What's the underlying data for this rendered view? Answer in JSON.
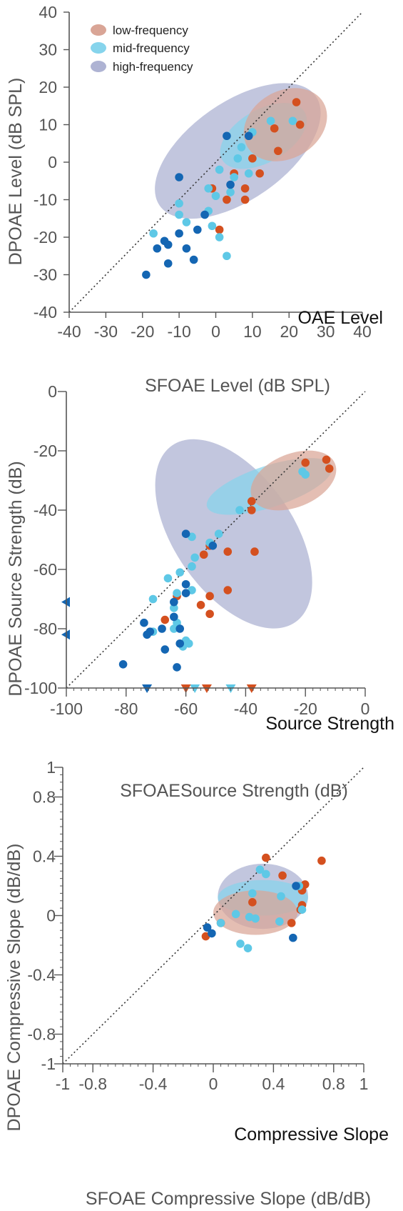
{
  "colors": {
    "low": "#d4501f",
    "mid": "#5ec8e6",
    "high": "#1466b3",
    "low_ellipse": "#d9a596",
    "mid_ellipse": "#86d4ec",
    "high_ellipse": "#aeb3d3"
  },
  "legend": [
    {
      "key": "low",
      "label": "low-frequency"
    },
    {
      "key": "mid",
      "label": "mid-frequency"
    },
    {
      "key": "high",
      "label": "high-frequency"
    }
  ],
  "chart_data": [
    {
      "type": "scatter",
      "title": "OAE Level",
      "xlabel": "SFOAE Level (dB SPL)",
      "ylabel": "DPOAE Level (dB SPL)",
      "xlim": [
        -40,
        40
      ],
      "ylim": [
        -40,
        40
      ],
      "xticks": [
        -40,
        -30,
        -20,
        -10,
        0,
        10,
        20,
        30,
        40
      ],
      "yticks": [
        -40,
        -30,
        -20,
        -10,
        0,
        10,
        20,
        30,
        40
      ],
      "xtick_labels": [
        "-40",
        "-30",
        "-20",
        "-10",
        "0",
        "10",
        "20",
        "30",
        "40"
      ],
      "ytick_labels": [
        "-40",
        "-30",
        "-20",
        "-10",
        "0",
        "10",
        "20",
        "30",
        "40"
      ],
      "identity_line": true,
      "ellipses": [
        {
          "group": "high",
          "cx": 6,
          "cy": 3,
          "rx": 26,
          "ry": 13,
          "angle": 35
        },
        {
          "group": "mid",
          "cx": 13,
          "cy": 7,
          "rx": 13,
          "ry": 7,
          "angle": 30
        },
        {
          "group": "low",
          "cx": 19,
          "cy": 10,
          "rx": 12,
          "ry": 9,
          "angle": 30
        }
      ],
      "series": [
        {
          "name": "low-frequency",
          "key": "low",
          "points": [
            [
              22,
              16
            ],
            [
              23,
              10
            ],
            [
              16,
              9
            ],
            [
              17,
              3
            ],
            [
              10,
              1
            ],
            [
              12,
              -3
            ],
            [
              5,
              -3
            ],
            [
              -1,
              -7
            ],
            [
              8,
              -7
            ],
            [
              3,
              -10
            ],
            [
              8,
              -10
            ],
            [
              1,
              -18
            ]
          ]
        },
        {
          "name": "mid-frequency",
          "key": "mid",
          "points": [
            [
              15,
              11
            ],
            [
              21,
              11
            ],
            [
              10,
              8
            ],
            [
              7,
              4
            ],
            [
              6,
              1
            ],
            [
              1,
              -2
            ],
            [
              9,
              -3
            ],
            [
              5,
              -4
            ],
            [
              -2,
              -7
            ],
            [
              4,
              -8
            ],
            [
              0,
              -9
            ],
            [
              -2,
              -13
            ],
            [
              -10,
              -11
            ],
            [
              -10,
              -14
            ],
            [
              -8,
              -16
            ],
            [
              -3,
              -14
            ],
            [
              -1,
              -17
            ],
            [
              1,
              -20
            ],
            [
              -17,
              -19
            ],
            [
              3,
              -25
            ]
          ]
        },
        {
          "name": "high-frequency",
          "key": "high",
          "points": [
            [
              3,
              7
            ],
            [
              9,
              7
            ],
            [
              -10,
              -4
            ],
            [
              4,
              -6
            ],
            [
              -3,
              -14
            ],
            [
              -10,
              -19
            ],
            [
              -5,
              -18
            ],
            [
              -14,
              -21
            ],
            [
              -13,
              -22
            ],
            [
              -16,
              -23
            ],
            [
              -8,
              -23
            ],
            [
              -6,
              -26
            ],
            [
              -13,
              -27
            ],
            [
              -19,
              -30
            ]
          ]
        }
      ]
    },
    {
      "type": "scatter",
      "title": "Source Strength",
      "xlabel": "SFOAESource Strength (dB)",
      "ylabel": "DPOAE Source Strength (dB)",
      "xlim": [
        -100,
        0
      ],
      "ylim": [
        -100,
        0
      ],
      "xticks": [
        -100,
        -80,
        -60,
        -40,
        -20,
        0
      ],
      "yticks": [
        -100,
        -80,
        -60,
        -40,
        -20,
        0
      ],
      "xtick_labels": [
        "-100",
        "-80",
        "-60",
        "-40",
        "-20",
        "0"
      ],
      "ytick_labels": [
        "-100",
        "-80",
        "-60",
        "-40",
        "-20",
        "0"
      ],
      "identity_line": true,
      "ellipses": [
        {
          "group": "high",
          "cx": -44,
          "cy": -48,
          "rx": 36,
          "ry": 20,
          "angle": -55
        },
        {
          "group": "mid",
          "cx": -32,
          "cy": -32,
          "rx": 22,
          "ry": 7,
          "angle": 18
        },
        {
          "group": "low",
          "cx": -24,
          "cy": -30,
          "rx": 15,
          "ry": 9,
          "angle": 22
        }
      ],
      "series": [
        {
          "name": "low-frequency",
          "key": "low",
          "points": [
            [
              -13,
              -23
            ],
            [
              -12,
              -26
            ],
            [
              -20,
              -24
            ],
            [
              -38,
              -37
            ],
            [
              -38,
              -40
            ],
            [
              -37,
              -54
            ],
            [
              -46,
              -54
            ],
            [
              -52,
              -52
            ],
            [
              -54,
              -55
            ],
            [
              -46,
              -67
            ],
            [
              -52,
              -69
            ],
            [
              -55,
              -72
            ],
            [
              -52,
              -75
            ],
            [
              -63,
              -69
            ],
            [
              -67,
              -77
            ]
          ]
        },
        {
          "name": "mid-frequency",
          "key": "mid",
          "points": [
            [
              -20,
              -28
            ],
            [
              -21,
              -27
            ],
            [
              -42,
              -40
            ],
            [
              -49,
              -48
            ],
            [
              -52,
              -51
            ],
            [
              -58,
              -49
            ],
            [
              -57,
              -56
            ],
            [
              -58,
              -59
            ],
            [
              -62,
              -61
            ],
            [
              -66,
              -63
            ],
            [
              -71,
              -70
            ],
            [
              -63,
              -68
            ],
            [
              -58,
              -67
            ],
            [
              -64,
              -73
            ],
            [
              -63,
              -78
            ],
            [
              -64,
              -80
            ],
            [
              -60,
              -84
            ],
            [
              -59,
              -85
            ],
            [
              -61,
              -86
            ],
            [
              -71,
              -81
            ]
          ]
        },
        {
          "name": "high-frequency",
          "key": "high",
          "points": [
            [
              -60,
              -48
            ],
            [
              -51,
              -52
            ],
            [
              -60,
              -65
            ],
            [
              -60,
              -68
            ],
            [
              -64,
              -71
            ],
            [
              -74,
              -78
            ],
            [
              -72,
              -81
            ],
            [
              -73,
              -82
            ],
            [
              -64,
              -76
            ],
            [
              -68,
              -80
            ],
            [
              -62,
              -80
            ],
            [
              -62,
              -85
            ],
            [
              -67,
              -87
            ],
            [
              -63,
              -93
            ],
            [
              -81,
              -92
            ]
          ]
        }
      ],
      "axis_markers": [
        {
          "key": "high",
          "axis": "y",
          "value": -71,
          "label": "◀"
        },
        {
          "key": "high",
          "axis": "y",
          "value": -82,
          "label": "◀"
        },
        {
          "key": "high",
          "axis": "x",
          "value": -73,
          "label": "▼"
        },
        {
          "key": "mid",
          "axis": "x",
          "value": -57,
          "label": "▼"
        },
        {
          "key": "mid",
          "axis": "x",
          "value": -45,
          "label": "▼"
        },
        {
          "key": "low",
          "axis": "x",
          "value": -60,
          "label": "▼"
        },
        {
          "key": "low",
          "axis": "x",
          "value": -53,
          "label": "▼"
        },
        {
          "key": "low",
          "axis": "x",
          "value": -38,
          "label": "▼"
        }
      ]
    },
    {
      "type": "scatter",
      "title": "Compressive Slope",
      "xlabel": "SFOAE Compressive Slope (dB/dB)",
      "ylabel": "DPOAE Compressive Slope (dB/dB)",
      "xlim": [
        -1,
        1
      ],
      "ylim": [
        -1,
        1
      ],
      "xticks": [
        -1,
        -0.8,
        -0.4,
        0,
        0.4,
        0.8,
        1
      ],
      "yticks": [
        -1,
        -0.8,
        -0.4,
        0,
        0.4,
        0.8,
        1
      ],
      "xtick_labels": [
        "-1",
        "-0.8",
        "-0.4",
        "0",
        "0.4",
        "0.8",
        "1"
      ],
      "ytick_labels": [
        "-1",
        "-0.8",
        "-0.4",
        "0",
        "0.4",
        "0.8",
        "1"
      ],
      "identity_line": true,
      "ellipses": [
        {
          "group": "high",
          "cx": 0.33,
          "cy": 0.13,
          "rx": 0.3,
          "ry": 0.22,
          "angle": 0
        },
        {
          "group": "mid",
          "cx": 0.33,
          "cy": 0.12,
          "rx": 0.3,
          "ry": 0.12,
          "angle": 0
        },
        {
          "group": "low",
          "cx": 0.28,
          "cy": 0.02,
          "rx": 0.28,
          "ry": 0.15,
          "angle": 0
        }
      ],
      "series": [
        {
          "name": "low-frequency",
          "key": "low",
          "points": [
            [
              0.35,
              0.39
            ],
            [
              0.72,
              0.37
            ],
            [
              0.46,
              0.27
            ],
            [
              0.61,
              0.21
            ],
            [
              0.59,
              0.17
            ],
            [
              0.26,
              0.09
            ],
            [
              0.59,
              0.07
            ],
            [
              0.58,
              0.04
            ],
            [
              0.05,
              -0.05
            ],
            [
              0.52,
              -0.05
            ],
            [
              -0.05,
              -0.14
            ]
          ]
        },
        {
          "name": "mid-frequency",
          "key": "mid",
          "points": [
            [
              0.31,
              0.31
            ],
            [
              0.35,
              0.28
            ],
            [
              0.57,
              0.2
            ],
            [
              0.26,
              0.15
            ],
            [
              0.45,
              0.13
            ],
            [
              0.59,
              0.04
            ],
            [
              0.15,
              0.01
            ],
            [
              0.24,
              -0.01
            ],
            [
              0.28,
              -0.02
            ],
            [
              0.44,
              -0.04
            ],
            [
              0.05,
              -0.05
            ],
            [
              0.18,
              -0.19
            ],
            [
              0.23,
              -0.22
            ]
          ]
        },
        {
          "name": "high-frequency",
          "key": "high",
          "points": [
            [
              0.55,
              0.2
            ],
            [
              -0.04,
              -0.08
            ],
            [
              -0.01,
              -0.12
            ],
            [
              0.53,
              -0.15
            ]
          ]
        }
      ]
    }
  ]
}
